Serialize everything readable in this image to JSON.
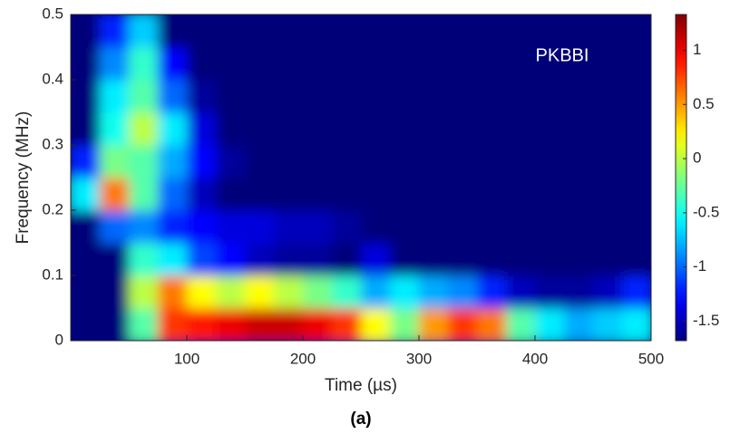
{
  "chart_data": {
    "type": "heatmap",
    "annotation": "PKBBI",
    "x_label": "Time (µs)",
    "y_label": "Frequency (MHz)",
    "caption": "(a)",
    "colormap": "jet",
    "xlim": [
      0,
      500
    ],
    "xticks": [
      100,
      200,
      300,
      400,
      500
    ],
    "ylim": [
      0,
      0.5
    ],
    "yticks": [
      0,
      0.1,
      0.2,
      0.3,
      0.4,
      0.5
    ],
    "clim": [
      -1.68,
      1.33
    ],
    "cticks": [
      -1.5,
      -1,
      -0.5,
      0,
      0.5,
      1
    ],
    "x": [
      12.5,
      37.5,
      62.5,
      87.5,
      112.5,
      137.5,
      162.5,
      187.5,
      212.5,
      237.5,
      262.5,
      287.5,
      312.5,
      337.5,
      362.5,
      387.5,
      412.5,
      437.5,
      462.5,
      487.5
    ],
    "y": [
      0.025,
      0.075,
      0.125,
      0.175,
      0.225,
      0.275,
      0.325,
      0.375,
      0.425,
      0.475
    ],
    "z": [
      [
        -1.7,
        -1.7,
        -0.3,
        0.8,
        0.9,
        1.0,
        1.1,
        1.1,
        1.0,
        0.8,
        0.2,
        -0.2,
        0.5,
        0.8,
        0.6,
        -0.3,
        -0.6,
        -0.8,
        -0.7,
        -0.6
      ],
      [
        -1.7,
        -1.7,
        0.0,
        0.6,
        0.2,
        0.0,
        0.2,
        0.0,
        -0.2,
        -0.4,
        -0.8,
        -0.6,
        -0.8,
        -0.9,
        -1.2,
        -1.5,
        -1.6,
        -1.6,
        -1.5,
        -1.2
      ],
      [
        -1.7,
        -1.7,
        -0.4,
        -0.6,
        -1.1,
        -1.3,
        -1.5,
        -1.6,
        -1.6,
        -1.7,
        -1.4,
        -1.7,
        -1.7,
        -1.7,
        -1.7,
        -1.7,
        -1.7,
        -1.7,
        -1.7,
        -1.7
      ],
      [
        -1.7,
        -1.0,
        -0.9,
        -1.2,
        -1.3,
        -1.4,
        -1.4,
        -1.5,
        -1.5,
        -1.6,
        -1.7,
        -1.7,
        -1.7,
        -1.7,
        -1.7,
        -1.7,
        -1.7,
        -1.7,
        -1.7,
        -1.7
      ],
      [
        -0.6,
        0.6,
        -0.3,
        -1.0,
        -1.5,
        -1.7,
        -1.7,
        -1.7,
        -1.7,
        -1.7,
        -1.7,
        -1.7,
        -1.7,
        -1.7,
        -1.7,
        -1.7,
        -1.7,
        -1.7,
        -1.7,
        -1.7
      ],
      [
        -1.2,
        -0.2,
        -0.3,
        -0.8,
        -1.3,
        -1.6,
        -1.7,
        -1.7,
        -1.7,
        -1.7,
        -1.7,
        -1.7,
        -1.7,
        -1.7,
        -1.7,
        -1.7,
        -1.7,
        -1.7,
        -1.7,
        -1.7
      ],
      [
        -1.7,
        -0.5,
        0.0,
        -0.6,
        -1.4,
        -1.7,
        -1.7,
        -1.7,
        -1.7,
        -1.7,
        -1.7,
        -1.7,
        -1.7,
        -1.7,
        -1.7,
        -1.7,
        -1.7,
        -1.7,
        -1.7,
        -1.7
      ],
      [
        -1.7,
        -0.6,
        -0.3,
        -1.0,
        -1.6,
        -1.7,
        -1.7,
        -1.7,
        -1.7,
        -1.7,
        -1.7,
        -1.7,
        -1.7,
        -1.7,
        -1.7,
        -1.7,
        -1.7,
        -1.7,
        -1.7,
        -1.7
      ],
      [
        -1.7,
        -0.9,
        -0.4,
        -1.3,
        -1.7,
        -1.7,
        -1.7,
        -1.7,
        -1.7,
        -1.7,
        -1.7,
        -1.7,
        -1.7,
        -1.7,
        -1.7,
        -1.7,
        -1.7,
        -1.7,
        -1.7,
        -1.7
      ],
      [
        -1.7,
        -1.2,
        -0.7,
        -1.7,
        -1.7,
        -1.7,
        -1.7,
        -1.7,
        -1.7,
        -1.7,
        -1.7,
        -1.7,
        -1.7,
        -1.7,
        -1.7,
        -1.7,
        -1.7,
        -1.7,
        -1.7,
        -1.7
      ]
    ]
  }
}
